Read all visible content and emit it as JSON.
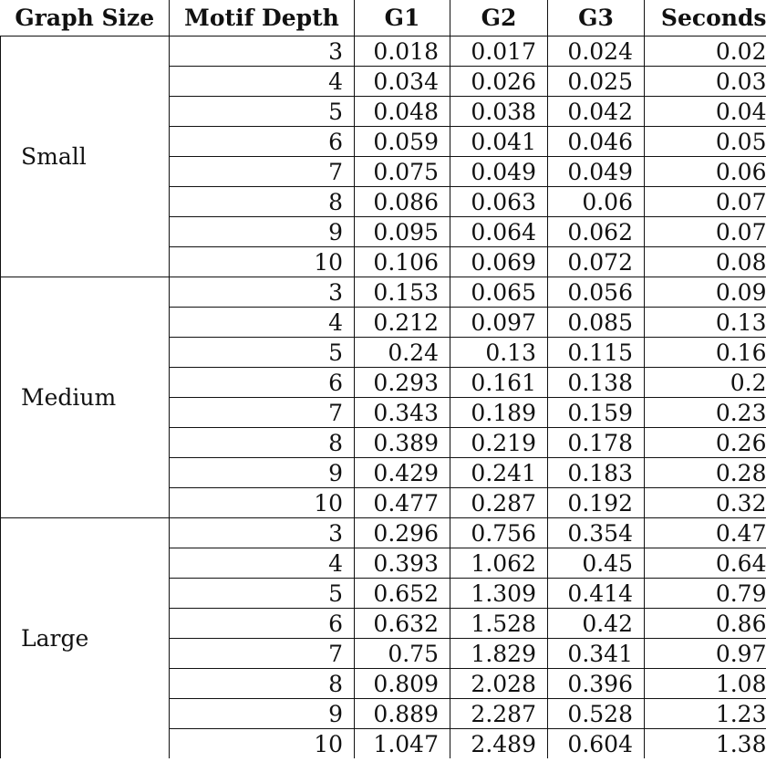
{
  "headers": [
    "Graph Size",
    "Motif Depth",
    "G1",
    "G2",
    "G3",
    "Seconds"
  ],
  "groups": [
    {
      "size": "Small",
      "rows": [
        {
          "depth": "3",
          "g1": "0.018",
          "g2": "0.017",
          "g3": "0.024",
          "seconds": "0.02"
        },
        {
          "depth": "4",
          "g1": "0.034",
          "g2": "0.026",
          "g3": "0.025",
          "seconds": "0.03"
        },
        {
          "depth": "5",
          "g1": "0.048",
          "g2": "0.038",
          "g3": "0.042",
          "seconds": "0.04"
        },
        {
          "depth": "6",
          "g1": "0.059",
          "g2": "0.041",
          "g3": "0.046",
          "seconds": "0.05"
        },
        {
          "depth": "7",
          "g1": "0.075",
          "g2": "0.049",
          "g3": "0.049",
          "seconds": "0.06"
        },
        {
          "depth": "8",
          "g1": "0.086",
          "g2": "0.063",
          "g3": "0.06",
          "seconds": "0.07"
        },
        {
          "depth": "9",
          "g1": "0.095",
          "g2": "0.064",
          "g3": "0.062",
          "seconds": "0.07"
        },
        {
          "depth": "10",
          "g1": "0.106",
          "g2": "0.069",
          "g3": "0.072",
          "seconds": "0.08"
        }
      ]
    },
    {
      "size": "Medium",
      "rows": [
        {
          "depth": "3",
          "g1": "0.153",
          "g2": "0.065",
          "g3": "0.056",
          "seconds": "0.09"
        },
        {
          "depth": "4",
          "g1": "0.212",
          "g2": "0.097",
          "g3": "0.085",
          "seconds": "0.13"
        },
        {
          "depth": "5",
          "g1": "0.24",
          "g2": "0.13",
          "g3": "0.115",
          "seconds": "0.16"
        },
        {
          "depth": "6",
          "g1": "0.293",
          "g2": "0.161",
          "g3": "0.138",
          "seconds": "0.2"
        },
        {
          "depth": "7",
          "g1": "0.343",
          "g2": "0.189",
          "g3": "0.159",
          "seconds": "0.23"
        },
        {
          "depth": "8",
          "g1": "0.389",
          "g2": "0.219",
          "g3": "0.178",
          "seconds": "0.26"
        },
        {
          "depth": "9",
          "g1": "0.429",
          "g2": "0.241",
          "g3": "0.183",
          "seconds": "0.28"
        },
        {
          "depth": "10",
          "g1": "0.477",
          "g2": "0.287",
          "g3": "0.192",
          "seconds": "0.32"
        }
      ]
    },
    {
      "size": "Large",
      "rows": [
        {
          "depth": "3",
          "g1": "0.296",
          "g2": "0.756",
          "g3": "0.354",
          "seconds": "0.47"
        },
        {
          "depth": "4",
          "g1": "0.393",
          "g2": "1.062",
          "g3": "0.45",
          "seconds": "0.64"
        },
        {
          "depth": "5",
          "g1": "0.652",
          "g2": "1.309",
          "g3": "0.414",
          "seconds": "0.79"
        },
        {
          "depth": "6",
          "g1": "0.632",
          "g2": "1.528",
          "g3": "0.42",
          "seconds": "0.86"
        },
        {
          "depth": "7",
          "g1": "0.75",
          "g2": "1.829",
          "g3": "0.341",
          "seconds": "0.97"
        },
        {
          "depth": "8",
          "g1": "0.809",
          "g2": "2.028",
          "g3": "0.396",
          "seconds": "1.08"
        },
        {
          "depth": "9",
          "g1": "0.889",
          "g2": "2.287",
          "g3": "0.528",
          "seconds": "1.23"
        },
        {
          "depth": "10",
          "g1": "1.047",
          "g2": "2.489",
          "g3": "0.604",
          "seconds": "1.38"
        }
      ]
    }
  ]
}
